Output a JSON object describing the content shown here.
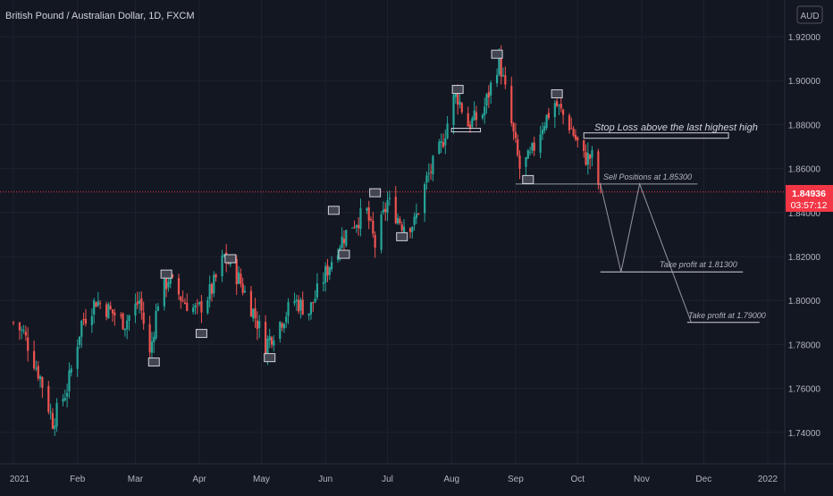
{
  "header": {
    "symbol_title": "British Pound / Australian Dollar, 1D, FXCM",
    "currency_button": "AUD"
  },
  "price_scale": {
    "labels": [
      "1.92000",
      "1.90000",
      "1.88000",
      "1.86000",
      "1.84000",
      "1.82000",
      "1.80000",
      "1.78000",
      "1.76000",
      "1.74000"
    ],
    "current_price": "1.84936",
    "countdown": "03:57:12",
    "current_price_color": "#f23645"
  },
  "time_scale": {
    "labels": [
      "2021",
      "Feb",
      "Mar",
      "Apr",
      "May",
      "Jun",
      "Jul",
      "Aug",
      "Sep",
      "Oct",
      "Nov",
      "Dec",
      "2022"
    ]
  },
  "annotations": {
    "stop_loss": "Stop Loss above the last highest high",
    "sell_positions": "Sell Positions at 1.85300",
    "take_profit_1": "Take profit at 1.81300",
    "take_profit_2": "Take profit at 1.79000"
  },
  "colors": {
    "background": "#131722",
    "up": "#26a69a",
    "down": "#ef5350",
    "grid": "#1e222d",
    "text": "#b2b5be"
  },
  "chart_data": {
    "type": "candlestick",
    "instrument": "British Pound / Australian Dollar",
    "timeframe": "1D",
    "x_range": [
      "2021-01",
      "2022-01"
    ],
    "ylim": [
      1.725,
      1.93
    ],
    "y_ticks": [
      1.92,
      1.9,
      1.88,
      1.86,
      1.84,
      1.82,
      1.8,
      1.78,
      1.76,
      1.74
    ],
    "last_price": 1.84936,
    "price_path": [
      [
        "2021-01-01",
        1.79
      ],
      [
        "2021-01-06",
        1.785
      ],
      [
        "2021-01-14",
        1.765
      ],
      [
        "2021-01-20",
        1.745
      ],
      [
        "2021-01-27",
        1.76
      ],
      [
        "2021-02-03",
        1.79
      ],
      [
        "2021-02-10",
        1.8
      ],
      [
        "2021-02-17",
        1.795
      ],
      [
        "2021-02-24",
        1.79
      ],
      [
        "2021-03-03",
        1.8
      ],
      [
        "2021-03-08",
        1.775
      ],
      [
        "2021-03-12",
        1.8
      ],
      [
        "2021-03-17",
        1.81
      ],
      [
        "2021-03-24",
        1.8
      ],
      [
        "2021-03-31",
        1.795
      ],
      [
        "2021-04-07",
        1.805
      ],
      [
        "2021-04-13",
        1.82
      ],
      [
        "2021-04-20",
        1.81
      ],
      [
        "2021-04-27",
        1.795
      ],
      [
        "2021-05-03",
        1.78
      ],
      [
        "2021-05-10",
        1.79
      ],
      [
        "2021-05-17",
        1.8
      ],
      [
        "2021-05-24",
        1.795
      ],
      [
        "2021-05-31",
        1.81
      ],
      [
        "2021-06-07",
        1.825
      ],
      [
        "2021-06-14",
        1.835
      ],
      [
        "2021-06-21",
        1.84
      ],
      [
        "2021-06-25",
        1.825
      ],
      [
        "2021-07-01",
        1.845
      ],
      [
        "2021-07-08",
        1.835
      ],
      [
        "2021-07-14",
        1.835
      ],
      [
        "2021-07-20",
        1.855
      ],
      [
        "2021-07-27",
        1.87
      ],
      [
        "2021-08-03",
        1.895
      ],
      [
        "2021-08-09",
        1.88
      ],
      [
        "2021-08-16",
        1.885
      ],
      [
        "2021-08-24",
        1.91
      ],
      [
        "2021-08-30",
        1.88
      ],
      [
        "2021-09-03",
        1.86
      ],
      [
        "2021-09-08",
        1.865
      ],
      [
        "2021-09-14",
        1.88
      ],
      [
        "2021-09-20",
        1.89
      ],
      [
        "2021-09-27",
        1.88
      ],
      [
        "2021-10-04",
        1.865
      ],
      [
        "2021-10-08",
        1.865
      ],
      [
        "2021-10-12",
        1.849
      ]
    ],
    "projection": [
      [
        "2021-10-12",
        1.853
      ],
      [
        "2021-10-22",
        1.813
      ],
      [
        "2021-10-31",
        1.853
      ],
      [
        "2021-11-25",
        1.79
      ]
    ],
    "levels": {
      "stop_loss": 1.875,
      "sell_positions": 1.853,
      "take_profit_1": 1.813,
      "take_profit_2": 1.79
    }
  }
}
